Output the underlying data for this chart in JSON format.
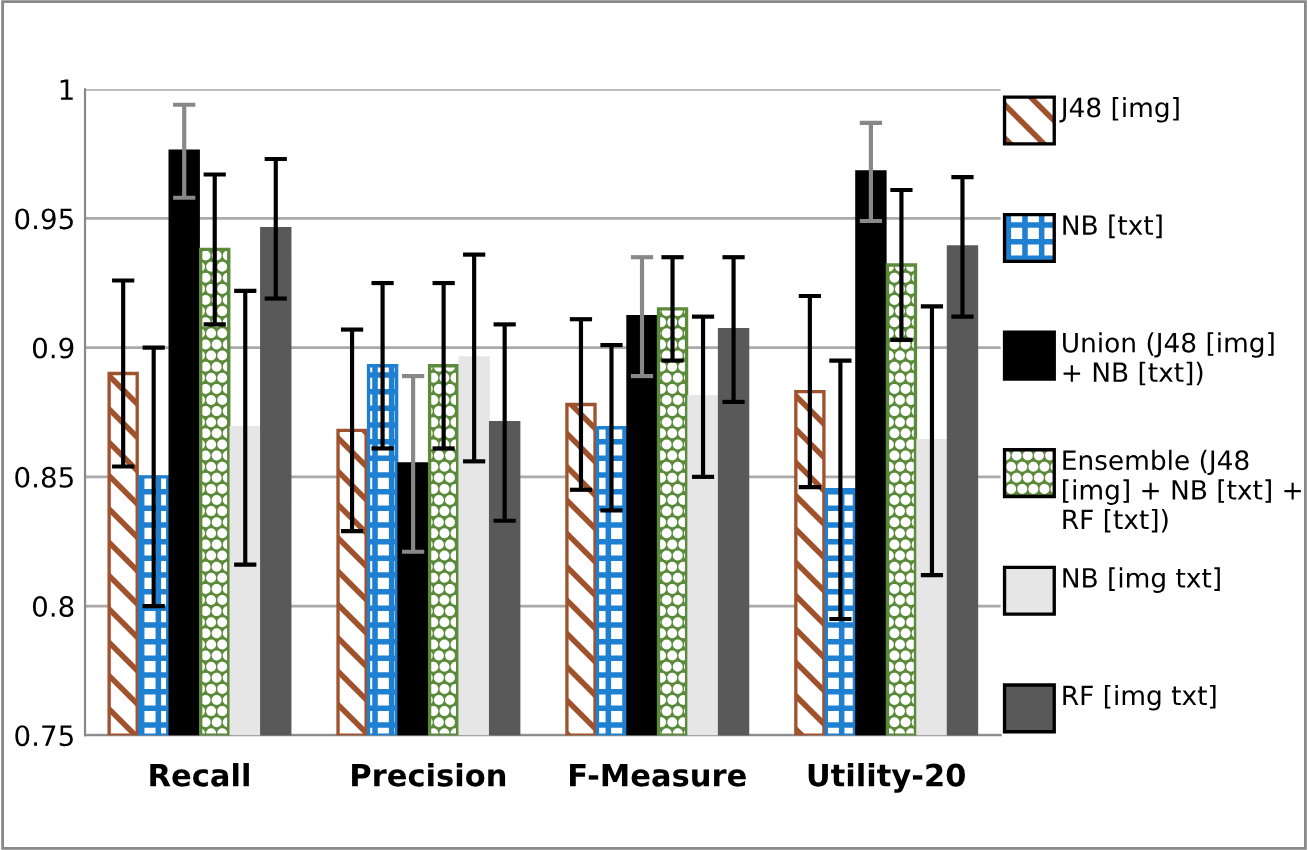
{
  "chart_data": {
    "type": "bar",
    "categories": [
      "Recall",
      "Precision",
      "F-Measure",
      "Utility-20"
    ],
    "series": [
      {
        "name": "J48 [img]",
        "color": "#a0522d",
        "values": [
          0.89,
          0.868,
          0.878,
          0.883
        ],
        "errors": [
          0.036,
          0.039,
          0.033,
          0.037
        ]
      },
      {
        "name": "NB [txt]",
        "color": "#1f7fd0",
        "values": [
          0.85,
          0.893,
          0.869,
          0.845
        ],
        "errors": [
          0.05,
          0.032,
          0.032,
          0.05
        ]
      },
      {
        "name": "Union (J48 [img] + NB [txt])",
        "color": "#000000",
        "values": [
          0.976,
          0.855,
          0.912,
          0.968
        ],
        "errors": [
          0.018,
          0.034,
          0.023,
          0.019
        ]
      },
      {
        "name": "Ensemble (J48 [img] + NB [txt] + RF [txt])",
        "color": "#5a8a3a",
        "values": [
          0.938,
          0.893,
          0.915,
          0.932
        ],
        "errors": [
          0.029,
          0.032,
          0.02,
          0.029
        ]
      },
      {
        "name": "NB [img txt]",
        "color": "#e6e6e6",
        "values": [
          0.869,
          0.896,
          0.881,
          0.864
        ],
        "errors": [
          0.053,
          0.04,
          0.031,
          0.052
        ]
      },
      {
        "name": "RF [img txt]",
        "color": "#595959",
        "values": [
          0.946,
          0.871,
          0.907,
          0.939
        ],
        "errors": [
          0.027,
          0.038,
          0.028,
          0.027
        ]
      }
    ],
    "ylim": [
      0.75,
      1
    ],
    "yticks": [
      0.75,
      0.8,
      0.85,
      0.9,
      0.95,
      1
    ],
    "grid": "y",
    "legend": "right"
  }
}
